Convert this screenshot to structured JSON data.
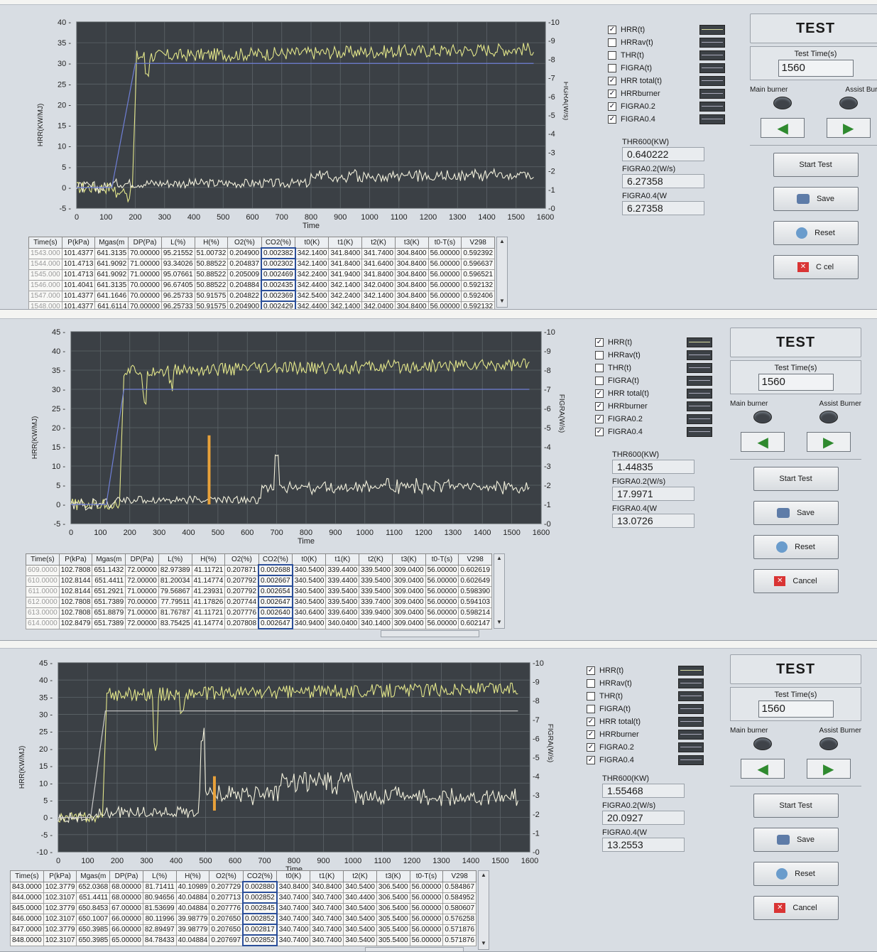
{
  "labels": {
    "y_left": "HRR(KW/MJ)",
    "y_right": "FIGRA(W/s)",
    "x_label": "Time"
  },
  "legend_items": [
    "HRR(t)",
    "HRRav(t)",
    "THR(t)",
    "FIGRA(t)",
    "HRR total(t)",
    "HRRburner",
    "FIGRA0.2",
    "FIGRA0.4"
  ],
  "controls": {
    "title": "TEST",
    "test_time_label": "Test Time(s)",
    "main_burner": "Main burner",
    "assist_burner_short": "Assist Burn",
    "assist_burner": "Assist Burner",
    "start": "Start Test",
    "save": "Save",
    "reset": "Reset",
    "cancel": "Cancel",
    "cancel_obscured": "C  cel",
    "left_arrow_icon": "arrow-left-icon",
    "right_arrow_icon": "arrow-right-icon"
  },
  "readout_labels": [
    "THR600(KW)",
    "FIGRA0.2(W/s)",
    "FIGRA0.4(W"
  ],
  "table_columns": [
    "Time(s)",
    "P(kPa)",
    "Mgas(m",
    "DP(Pa)",
    "L(%)",
    "H(%)",
    "O2(%)",
    "CO2(%)",
    "t0(K)",
    "t1(K)",
    "t2(K)",
    "t3(K)",
    "t0-T(s)",
    "V298"
  ],
  "colors": {
    "plot_bg": "#3b4045",
    "grid": "#5d6469",
    "hrr_curve": "#e3e68a",
    "total_curve": "#f2f0dc",
    "burner_line": "#6f7fd6",
    "figra_spike": "#e8a13a"
  },
  "panels": [
    {
      "id": "panel1",
      "chart_data": {
        "type": "line",
        "x_ticks": [
          0,
          100,
          200,
          300,
          400,
          500,
          600,
          700,
          800,
          900,
          1000,
          1100,
          1200,
          1300,
          1400,
          1500,
          1600
        ],
        "y_left_ticks": [
          -5,
          0,
          5,
          10,
          15,
          20,
          25,
          30,
          35,
          40
        ],
        "y_right_ticks": [
          0,
          1,
          2,
          3,
          4,
          5,
          6,
          7,
          8,
          9,
          10
        ],
        "xlim": [
          0,
          1600
        ],
        "ylim": [
          -5,
          40
        ],
        "y2lim": [
          0,
          10
        ],
        "legend_checked": [
          true,
          false,
          false,
          false,
          true,
          true,
          true,
          true
        ],
        "series": [
          {
            "name": "HRR(t)",
            "color": "#e3e68a",
            "base": 31.5,
            "noise": 1.6,
            "rise_at": 190,
            "spikes": [
              [
                140,
                -2
              ],
              [
                175,
                -3
              ],
              [
                240,
                -4
              ]
            ]
          },
          {
            "name": "HRR total(t)",
            "color": "#f2f0dc",
            "base": 1.0,
            "noise": 1.1,
            "rise_at": 100,
            "seg": [
              [
                800,
                2.0
              ]
            ],
            "spikes": []
          },
          {
            "name": "HRRburner",
            "color": "#6f7fd6",
            "step": [
              120,
              200,
              30
            ]
          }
        ]
      },
      "readouts": [
        "0.640222",
        "6.27358",
        "6.27358"
      ],
      "test_time": "1560",
      "table_rows": [
        [
          "1543.000",
          "101.4377",
          "641.3135",
          "70.00000",
          "95.21552",
          "51.00732",
          "0.204900",
          "0.002382",
          "342.1400",
          "341.8400",
          "341.7400",
          "304.8400",
          "56.00000",
          "0.592392"
        ],
        [
          "1544.000",
          "101.4713",
          "641.9092",
          "71.00000",
          "93.34026",
          "50.88522",
          "0.204837",
          "0.002302",
          "342.1400",
          "341.8400",
          "341.6400",
          "304.8400",
          "56.00000",
          "0.596637"
        ],
        [
          "1545.000",
          "101.4713",
          "641.9092",
          "71.00000",
          "95.07661",
          "50.88522",
          "0.205009",
          "0.002469",
          "342.2400",
          "341.9400",
          "341.8400",
          "304.8400",
          "56.00000",
          "0.596521"
        ],
        [
          "1546.000",
          "101.4041",
          "641.3135",
          "70.00000",
          "96.67405",
          "50.88522",
          "0.204884",
          "0.002435",
          "342.4400",
          "342.1400",
          "342.0400",
          "304.8400",
          "56.00000",
          "0.592132"
        ],
        [
          "1547.000",
          "101.4377",
          "641.1646",
          "70.00000",
          "96.25733",
          "50.91575",
          "0.204822",
          "0.002369",
          "342.5400",
          "342.2400",
          "342.1400",
          "304.8400",
          "56.00000",
          "0.592406"
        ],
        [
          "1548.000",
          "101.4377",
          "641.6114",
          "70.00000",
          "96.25733",
          "50.91575",
          "0.204900",
          "0.002429",
          "342.4400",
          "342.1400",
          "342.0400",
          "304.8400",
          "56.00000",
          "0.592132"
        ]
      ]
    },
    {
      "id": "panel2",
      "chart_data": {
        "type": "line",
        "x_ticks": [
          0,
          100,
          200,
          300,
          400,
          500,
          600,
          700,
          800,
          900,
          1000,
          1100,
          1200,
          1300,
          1400,
          1500,
          1600
        ],
        "y_left_ticks": [
          -5,
          0,
          5,
          10,
          15,
          20,
          25,
          30,
          35,
          40,
          45
        ],
        "y_right_ticks": [
          0,
          1,
          2,
          3,
          4,
          5,
          6,
          7,
          8,
          9,
          10
        ],
        "xlim": [
          0,
          1600
        ],
        "ylim": [
          -5,
          45
        ],
        "y2lim": [
          0,
          10
        ],
        "legend_checked": [
          true,
          false,
          false,
          false,
          true,
          true,
          true,
          true
        ],
        "series": [
          {
            "name": "HRR(t)",
            "color": "#e3e68a",
            "base": 34.5,
            "noise": 1.7,
            "rise_at": 165,
            "spikes": [
              [
                250,
                -7
              ],
              [
                340,
                -4
              ]
            ]
          },
          {
            "name": "HRR total(t)",
            "color": "#f2f0dc",
            "base": 1.2,
            "noise": 1.0,
            "rise_at": 140,
            "seg": [
              [
                650,
                3.5
              ],
              [
                1000,
                4.0
              ]
            ],
            "spikes": [
              [
                700,
                8
              ]
            ]
          },
          {
            "name": "HRRburner",
            "color": "#6f7fd6",
            "step": [
              120,
              180,
              30
            ]
          },
          {
            "name": "FIGRA0.2",
            "color": "#e8a13a",
            "spike_line": [
              470,
              0,
              18
            ]
          }
        ]
      },
      "readouts": [
        "1.44835",
        "17.9971",
        "13.0726"
      ],
      "test_time": "1560",
      "table_rows": [
        [
          "609.0000",
          "102.7808",
          "651.1432",
          "72.00000",
          "82.97389",
          "41.11721",
          "0.207871",
          "0.002688",
          "340.5400",
          "339.4400",
          "339.5400",
          "309.0400",
          "56.00000",
          "0.602619"
        ],
        [
          "610.0000",
          "102.8144",
          "651.4411",
          "72.00000",
          "81.20034",
          "41.14774",
          "0.207792",
          "0.002667",
          "340.5400",
          "339.4400",
          "339.5400",
          "309.0400",
          "56.00000",
          "0.602649"
        ],
        [
          "611.0000",
          "102.8144",
          "651.2921",
          "71.00000",
          "79.56867",
          "41.23931",
          "0.207792",
          "0.002654",
          "340.5400",
          "339.5400",
          "339.5400",
          "309.0400",
          "56.00000",
          "0.598390"
        ],
        [
          "612.0000",
          "102.7808",
          "651.7389",
          "70.00000",
          "77.79511",
          "41.17826",
          "0.207744",
          "0.002647",
          "340.5400",
          "339.5400",
          "339.7400",
          "309.0400",
          "56.00000",
          "0.594103"
        ],
        [
          "613.0000",
          "102.7808",
          "651.8879",
          "71.00000",
          "81.76787",
          "41.11721",
          "0.207776",
          "0.002640",
          "340.6400",
          "339.6400",
          "339.9400",
          "309.0400",
          "56.00000",
          "0.598214"
        ],
        [
          "614.0000",
          "102.8479",
          "651.7389",
          "72.00000",
          "83.75425",
          "41.14774",
          "0.207808",
          "0.002647",
          "340.9400",
          "340.0400",
          "340.1400",
          "309.0400",
          "56.00000",
          "0.602147"
        ]
      ]
    },
    {
      "id": "panel3",
      "chart_data": {
        "type": "line",
        "x_ticks": [
          0,
          100,
          200,
          300,
          400,
          500,
          600,
          700,
          800,
          900,
          1000,
          1100,
          1200,
          1300,
          1400,
          1500,
          1600
        ],
        "y_left_ticks": [
          -10,
          -5,
          0,
          5,
          10,
          15,
          20,
          25,
          30,
          35,
          40,
          45
        ],
        "y_right_ticks": [
          0,
          1,
          2,
          3,
          4,
          5,
          6,
          7,
          8,
          9,
          10
        ],
        "xlim": [
          0,
          1600
        ],
        "ylim": [
          -10,
          45
        ],
        "y2lim": [
          0,
          10
        ],
        "legend_checked": [
          true,
          false,
          false,
          false,
          true,
          true,
          true,
          true
        ],
        "series": [
          {
            "name": "HRR(t)",
            "color": "#e3e68a",
            "base": 35.5,
            "noise": 2.0,
            "rise_at": 150,
            "spikes": [
              [
                330,
                -16
              ],
              [
                420,
                -6
              ]
            ]
          },
          {
            "name": "HRR total(t)",
            "color": "#f2f0dc",
            "base": 1.5,
            "noise": 1.6,
            "rise_at": 120,
            "seg": [
              [
                480,
                6.0
              ],
              [
                750,
                10.0
              ],
              [
                1000,
                5.0
              ]
            ],
            "spikes": [
              [
                490,
                18
              ]
            ]
          },
          {
            "name": "HRRburner",
            "color": "#c9c9c9",
            "step": [
              110,
              160,
              31
            ]
          },
          {
            "name": "FIGRA0.2",
            "color": "#e8a13a",
            "spike_line": [
              530,
              2,
              12
            ]
          }
        ]
      },
      "readouts": [
        "1.55468",
        "20.0927",
        "13.2553"
      ],
      "test_time": "1560",
      "table_rows": [
        [
          "843.0000",
          "102.3779",
          "652.0368",
          "68.00000",
          "81.71411",
          "40.10989",
          "0.207729",
          "0.002880",
          "340.8400",
          "340.8400",
          "340.5400",
          "306.5400",
          "56.00000",
          "0.584867"
        ],
        [
          "844.0000",
          "102.3107",
          "651.4411",
          "68.00000",
          "80.94656",
          "40.04884",
          "0.207713",
          "0.002852",
          "340.7400",
          "340.7400",
          "340.4400",
          "306.5400",
          "56.00000",
          "0.584952"
        ],
        [
          "845.0000",
          "102.3779",
          "650.8453",
          "67.00000",
          "81.53699",
          "40.04884",
          "0.207776",
          "0.002845",
          "340.7400",
          "340.7400",
          "340.5400",
          "306.5400",
          "56.00000",
          "0.580607"
        ],
        [
          "846.0000",
          "102.3107",
          "650.1007",
          "66.00000",
          "80.11996",
          "39.98779",
          "0.207650",
          "0.002852",
          "340.7400",
          "340.7400",
          "340.5400",
          "305.5400",
          "56.00000",
          "0.576258"
        ],
        [
          "847.0000",
          "102.3779",
          "650.3985",
          "66.00000",
          "82.89497",
          "39.98779",
          "0.207650",
          "0.002817",
          "340.7400",
          "340.7400",
          "340.5400",
          "305.5400",
          "56.00000",
          "0.571876"
        ],
        [
          "848.0000",
          "102.3107",
          "650.3985",
          "65.00000",
          "84.78433",
          "40.04884",
          "0.207697",
          "0.002852",
          "340.7400",
          "340.7400",
          "340.5400",
          "305.5400",
          "56.00000",
          "0.571876"
        ]
      ]
    }
  ]
}
